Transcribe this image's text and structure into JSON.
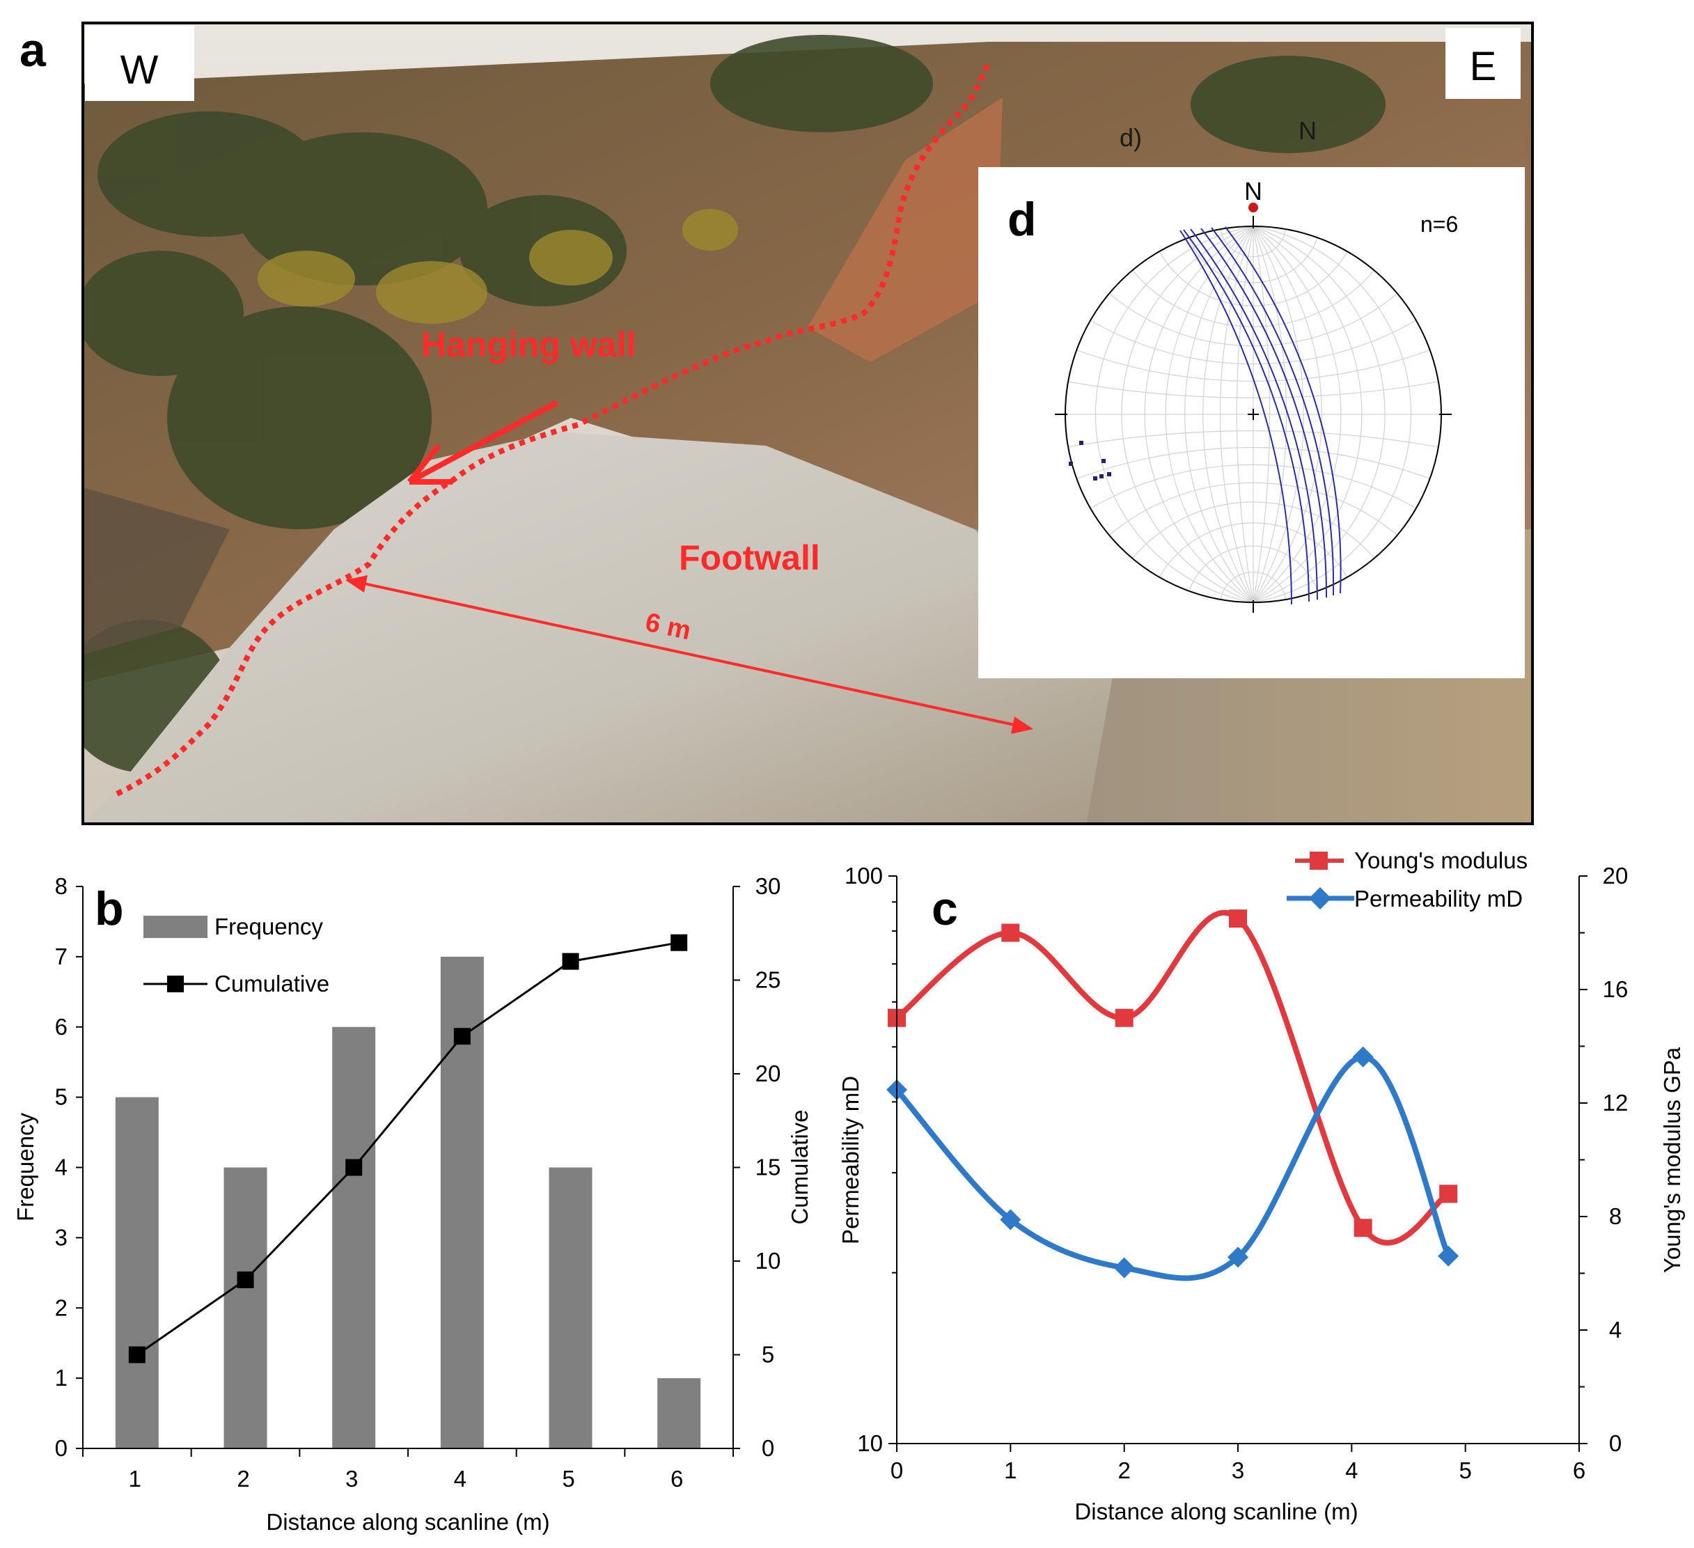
{
  "panels": {
    "a": "a",
    "b": "b",
    "c": "c",
    "d": "d"
  },
  "photo": {
    "west_label": "W",
    "east_label": "E",
    "hanging_wall_label": "Hanging wall",
    "footwall_label": "Footwall",
    "distance_label": "6 m",
    "background_letters": [
      "d)",
      "N"
    ]
  },
  "stereonet": {
    "north_label": "N",
    "n_label": "n=6",
    "great_circle_color": "#2c2ca8",
    "pole_color": "#1f1f7a"
  },
  "colors": {
    "bar": "#808080",
    "cumulative": "#000000",
    "youngs": "#e03a3e",
    "permeability": "#2e7ac9",
    "fault_line": "#ff2a2a"
  },
  "chart_data": [
    {
      "id": "b",
      "type": "bar",
      "title": "",
      "xlabel": "Distance along scanline (m)",
      "ylabel": "Frequency",
      "ylabel_right": "Cumulative",
      "categories": [
        "1",
        "2",
        "3",
        "4",
        "5",
        "6"
      ],
      "series": [
        {
          "name": "Frequency",
          "type": "bar",
          "axis": "left",
          "values": [
            5,
            4,
            6,
            7,
            4,
            1
          ]
        },
        {
          "name": "Cumulative",
          "type": "line",
          "axis": "right",
          "values": [
            5,
            9,
            15,
            22,
            26,
            27
          ]
        }
      ],
      "ylim": [
        0,
        8
      ],
      "yticks": [
        "0",
        "1",
        "2",
        "3",
        "4",
        "5",
        "6",
        "7",
        "8"
      ],
      "ylim_right": [
        0,
        30
      ],
      "yticks_right": [
        "0",
        "5",
        "10",
        "15",
        "20",
        "25",
        "30"
      ],
      "legend_position": "top-left",
      "grid": false
    },
    {
      "id": "c",
      "type": "line",
      "title": "",
      "xlabel": "Distance  along  scanline  (m)",
      "ylabel": "Permeability mD",
      "ylabel_right": "Young's modulus GPa",
      "xlim": [
        0,
        6
      ],
      "xticks": [
        "0",
        "1",
        "2",
        "3",
        "4",
        "5",
        "6"
      ],
      "ylim": [
        10,
        100
      ],
      "yscale": "log",
      "yticks": [
        "10",
        "100"
      ],
      "ylim_right": [
        0,
        20
      ],
      "yticks_right": [
        "0",
        "4",
        "8",
        "12",
        "16",
        "20"
      ],
      "series": [
        {
          "name": "Young's modulus",
          "axis": "right",
          "x": [
            0,
            1,
            2,
            3,
            4.1,
            4.85
          ],
          "y": [
            15,
            18,
            15,
            18.5,
            7.6,
            8.8
          ]
        },
        {
          "name": "Permeability mD",
          "axis": "left",
          "x": [
            0,
            1,
            2,
            3,
            4.1,
            4.85
          ],
          "y": [
            42,
            24.8,
            20.4,
            21.3,
            48,
            21.4
          ]
        }
      ],
      "legend_position": "top-right",
      "grid": false
    }
  ]
}
